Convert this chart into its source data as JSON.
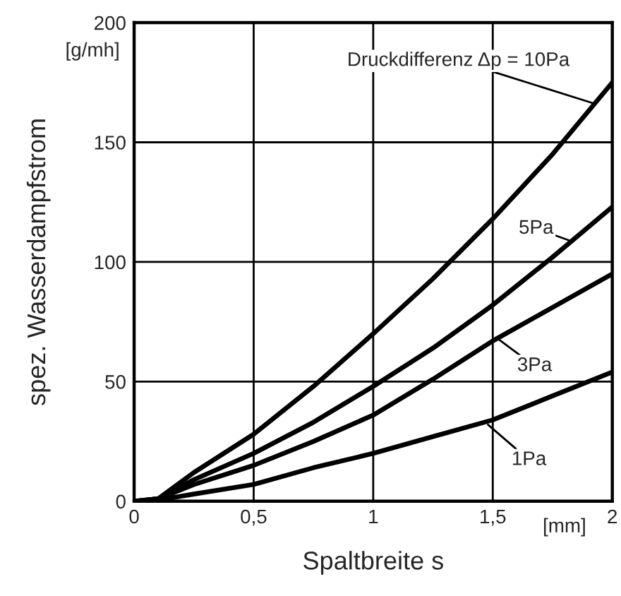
{
  "chart_data": {
    "type": "line",
    "xlabel": "Spaltbreite s",
    "ylabel": "spez. Wasserdampfstrom",
    "xlim": [
      0,
      2
    ],
    "ylim": [
      0,
      200
    ],
    "xticks": [
      0,
      {
        "value": 0.5,
        "label": "0,5"
      },
      1,
      {
        "value": 1.5,
        "label": "1,5"
      },
      2
    ],
    "yticks": [
      0,
      50,
      100,
      150,
      200
    ],
    "grid": true,
    "marker": "none",
    "line_style": "solid",
    "series": [
      {
        "color": "#000000",
        "x": [
          0,
          0.1,
          0.25,
          0.5,
          0.75,
          1,
          1.25,
          1.5,
          1.75,
          2
        ],
        "values": [
          0,
          1,
          12,
          28,
          48,
          70,
          93,
          118,
          145,
          175
        ]
      },
      {
        "color": "#000000",
        "x": [
          0,
          0.1,
          0.25,
          0.5,
          0.75,
          1,
          1.25,
          1.5,
          1.75,
          2
        ],
        "values": [
          0,
          1,
          9,
          20,
          33,
          48,
          64,
          82,
          102,
          123
        ]
      },
      {
        "color": "#000000",
        "x": [
          0,
          0.1,
          0.25,
          0.5,
          0.75,
          1,
          1.25,
          1.5,
          1.75,
          2
        ],
        "values": [
          0,
          1,
          7,
          15,
          25,
          36,
          51,
          67,
          81,
          95
        ]
      },
      {
        "color": "#000000",
        "x": [
          0,
          0.1,
          0.25,
          0.5,
          0.75,
          1,
          1.25,
          1.5,
          1.75,
          2
        ],
        "values": [
          0,
          0.5,
          3,
          7,
          14,
          20,
          27,
          34,
          44,
          54
        ]
      }
    ],
    "annotations": [
      {
        "text": "Druckdifferenz Δp = 10Pa",
        "x": 1.93,
        "y": 166
      },
      {
        "text": "5Pa",
        "x": 1.82,
        "y": 109
      },
      {
        "text": "3Pa",
        "x": 1.52,
        "y": 68
      },
      {
        "text": "1Pa",
        "x": 1.48,
        "y": 32
      },
      "[g/mh]",
      "[mm]"
    ]
  }
}
